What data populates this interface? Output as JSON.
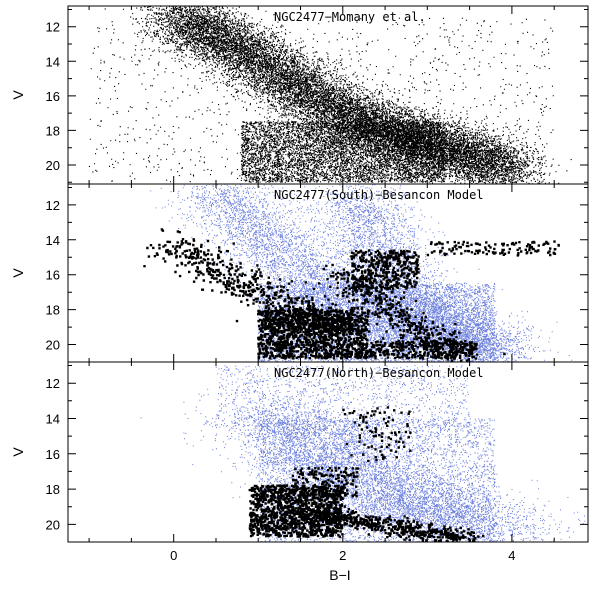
{
  "chart_data": {
    "type": "scatter",
    "xlabel": "B−I",
    "ylabel": "V",
    "xlim": [
      -1.25,
      4.9
    ],
    "x_ticks": [
      0,
      2,
      4
    ],
    "y_ticks": [
      12,
      14,
      16,
      18,
      20
    ],
    "y_inverted": true,
    "colors": {
      "observed": "#000000",
      "model": "#6b7fdc"
    },
    "panels": [
      {
        "title": "NGC2477−Momany et al.",
        "ylim": [
          21.1,
          10.8
        ],
        "layers": [
          {
            "name": "",
            "color": "#000000",
            "count": 22000,
            "size": 1.1,
            "distribution": [
              {
                "w": 0.68,
                "seq": [
                  [
                    0.0,
                    11.3
                  ],
                  [
                    0.5,
                    12.5
                  ],
                  [
                    1.0,
                    14.0
                  ],
                  [
                    1.5,
                    15.6
                  ],
                  [
                    2.0,
                    17.0
                  ],
                  [
                    2.5,
                    18.0
                  ],
                  [
                    3.0,
                    18.8
                  ],
                  [
                    3.5,
                    19.5
                  ],
                  [
                    4.0,
                    20.3
                  ]
                ],
                "sx": 0.25,
                "sy": 0.75
              },
              {
                "w": 0.27,
                "box": [
                  0.8,
                  3.2,
                  17.5,
                  21.0
                ]
              },
              {
                "w": 0.05,
                "box": [
                  -1.0,
                  4.5,
                  11.5,
                  21.0
                ]
              }
            ]
          }
        ]
      },
      {
        "title": "NGC2477(South)−Besancon Model",
        "ylim": [
          21.0,
          10.8
        ],
        "layers": [
          {
            "name": "",
            "color": "#6b7fdc",
            "count": 15000,
            "size": 1.0,
            "distribution": [
              {
                "w": 0.35,
                "seq": [
                  [
                    0.5,
                    11.0
                  ],
                  [
                    0.9,
                    13.0
                  ],
                  [
                    1.3,
                    15.0
                  ],
                  [
                    1.8,
                    17.0
                  ],
                  [
                    2.5,
                    18.5
                  ],
                  [
                    3.2,
                    19.5
                  ],
                  [
                    3.9,
                    20.5
                  ]
                ],
                "sx": 0.3,
                "sy": 0.8
              },
              {
                "w": 0.25,
                "seq": [
                  [
                    2.2,
                    11.5
                  ],
                  [
                    2.3,
                    13.5
                  ],
                  [
                    2.5,
                    15.5
                  ],
                  [
                    2.8,
                    17.5
                  ],
                  [
                    3.3,
                    19.0
                  ],
                  [
                    3.8,
                    20.5
                  ]
                ],
                "sx": 0.3,
                "sy": 0.7
              },
              {
                "w": 0.4,
                "box": [
                  1.0,
                  3.8,
                  16.5,
                  21.0
                ]
              }
            ]
          },
          {
            "name": "",
            "color": "#000000",
            "count": 3200,
            "size": 2.4,
            "distribution": [
              {
                "w": 0.2,
                "seq": [
                  [
                    0.0,
                    14.3
                  ],
                  [
                    0.4,
                    15.5
                  ],
                  [
                    0.9,
                    16.8
                  ],
                  [
                    1.3,
                    17.8
                  ],
                  [
                    1.7,
                    18.6
                  ],
                  [
                    2.0,
                    19.2
                  ]
                ],
                "sx": 0.18,
                "sy": 0.45
              },
              {
                "w": 0.4,
                "box": [
                  1.0,
                  2.3,
                  18.0,
                  20.8
                ]
              },
              {
                "w": 0.14,
                "seq": [
                  [
                    2.0,
                    16.0
                  ],
                  [
                    2.3,
                    17.0
                  ],
                  [
                    2.6,
                    18.2
                  ],
                  [
                    3.0,
                    19.5
                  ],
                  [
                    3.4,
                    20.5
                  ]
                ],
                "sx": 0.15,
                "sy": 0.4
              },
              {
                "w": 0.12,
                "box": [
                  2.1,
                  2.9,
                  14.6,
                  16.8
                ]
              },
              {
                "w": 0.1,
                "box": [
                  2.2,
                  3.6,
                  19.8,
                  20.8
                ]
              },
              {
                "w": 0.04,
                "box": [
                  3.0,
                  4.6,
                  14.1,
                  14.9
                ]
              }
            ]
          }
        ]
      },
      {
        "title": "NGC2477(North)−Besancon Model",
        "ylim": [
          21.0,
          10.8
        ],
        "layers": [
          {
            "name": "",
            "color": "#6b7fdc",
            "count": 11000,
            "size": 1.0,
            "distribution": [
              {
                "w": 0.5,
                "seq": [
                  [
                    1.2,
                    13.5
                  ],
                  [
                    1.6,
                    15.5
                  ],
                  [
                    2.0,
                    17.0
                  ],
                  [
                    2.6,
                    18.5
                  ],
                  [
                    3.2,
                    19.5
                  ],
                  [
                    3.9,
                    20.5
                  ]
                ],
                "sx": 0.45,
                "sy": 0.8
              },
              {
                "w": 0.4,
                "box": [
                  1.0,
                  3.8,
                  14.0,
                  21.0
                ]
              },
              {
                "w": 0.1,
                "box": [
                  0.5,
                  3.5,
                  11.0,
                  14.5
                ]
              }
            ]
          },
          {
            "name": "",
            "color": "#000000",
            "count": 2000,
            "size": 2.4,
            "distribution": [
              {
                "w": 0.55,
                "box": [
                  0.9,
                  2.0,
                  17.8,
                  20.7
                ]
              },
              {
                "w": 0.3,
                "seq": [
                  [
                    1.5,
                    19.2
                  ],
                  [
                    2.0,
                    19.7
                  ],
                  [
                    2.5,
                    20.1
                  ],
                  [
                    3.0,
                    20.5
                  ],
                  [
                    3.5,
                    20.9
                  ]
                ],
                "sx": 0.15,
                "sy": 0.25
              },
              {
                "w": 0.1,
                "box": [
                  1.4,
                  2.2,
                  16.8,
                  18.5
                ]
              },
              {
                "w": 0.05,
                "box": [
                  2.0,
                  2.8,
                  13.3,
                  16.5
                ]
              }
            ]
          }
        ]
      }
    ]
  }
}
